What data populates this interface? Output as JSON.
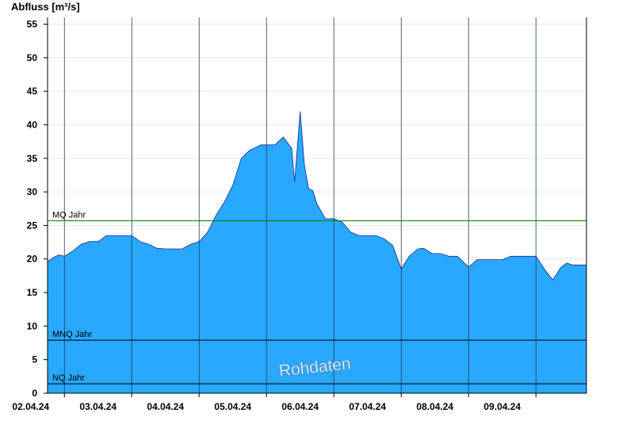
{
  "chart_data": {
    "type": "area",
    "ylabel": "Abfluss [m³/s]",
    "ylim": [
      0,
      56
    ],
    "yticks": [
      0,
      5,
      10,
      15,
      20,
      25,
      30,
      35,
      40,
      45,
      50,
      55
    ],
    "xlim": [
      "2024-04-01T18:00",
      "2024-04-09T18:00"
    ],
    "x_tick_labels": [
      "02.04.24",
      "03.04.24",
      "04.04.24",
      "05.04.24",
      "06.04.24",
      "07.04.24",
      "08.04.24",
      "09.04.24"
    ],
    "grid": true,
    "series": [
      {
        "fill_color": "#29a8ff",
        "line_color": "#1a2a8a",
        "x": [
          "2024-04-01T18:00",
          "2024-04-01T20:00",
          "2024-04-01T22:00",
          "2024-04-02T00:00",
          "2024-04-02T03:00",
          "2024-04-02T06:00",
          "2024-04-02T09:00",
          "2024-04-02T12:00",
          "2024-04-02T15:00",
          "2024-04-02T18:00",
          "2024-04-02T21:00",
          "2024-04-03T00:00",
          "2024-04-03T03:00",
          "2024-04-03T06:00",
          "2024-04-03T09:00",
          "2024-04-03T12:00",
          "2024-04-03T15:00",
          "2024-04-03T18:00",
          "2024-04-03T21:00",
          "2024-04-04T00:00",
          "2024-04-04T03:00",
          "2024-04-04T06:00",
          "2024-04-04T09:00",
          "2024-04-04T12:00",
          "2024-04-04T15:00",
          "2024-04-04T18:00",
          "2024-04-04T20:00",
          "2024-04-04T22:00",
          "2024-04-05T00:00",
          "2024-04-05T03:00",
          "2024-04-05T06:00",
          "2024-04-05T09:00",
          "2024-04-05T10:00",
          "2024-04-05T12:00",
          "2024-04-05T13:30",
          "2024-04-05T15:00",
          "2024-04-05T16:30",
          "2024-04-05T18:00",
          "2024-04-05T21:00",
          "2024-04-06T00:00",
          "2024-04-06T03:00",
          "2024-04-06T06:00",
          "2024-04-06T09:00",
          "2024-04-06T12:00",
          "2024-04-06T15:00",
          "2024-04-06T18:00",
          "2024-04-06T21:00",
          "2024-04-07T00:00",
          "2024-04-07T03:00",
          "2024-04-07T06:00",
          "2024-04-07T08:00",
          "2024-04-07T11:00",
          "2024-04-07T14:00",
          "2024-04-07T17:00",
          "2024-04-07T20:00",
          "2024-04-08T00:00",
          "2024-04-08T03:00",
          "2024-04-08T06:00",
          "2024-04-08T09:00",
          "2024-04-08T12:00",
          "2024-04-08T15:00",
          "2024-04-08T18:00",
          "2024-04-08T21:00",
          "2024-04-09T00:00",
          "2024-04-09T03:00",
          "2024-04-09T06:00",
          "2024-04-09T09:00",
          "2024-04-09T11:00",
          "2024-04-09T13:00",
          "2024-04-09T15:00",
          "2024-04-09T18:00"
        ],
        "y": [
          19.6,
          20.2,
          20.6,
          20.4,
          21.2,
          22.2,
          22.6,
          22.6,
          23.5,
          23.5,
          23.5,
          23.5,
          22.6,
          22.2,
          21.6,
          21.5,
          21.5,
          21.5,
          22.2,
          22.6,
          24.0,
          26.5,
          28.5,
          31.0,
          35.0,
          36.2,
          36.6,
          37.0,
          37.0,
          37.0,
          38.2,
          36.5,
          31.5,
          42.0,
          34.0,
          30.5,
          30.2,
          28.2,
          26.0,
          26.0,
          25.5,
          24.0,
          23.5,
          23.5,
          23.5,
          23.0,
          22.0,
          18.5,
          20.5,
          21.5,
          21.6,
          20.8,
          20.8,
          20.4,
          20.4,
          18.8,
          19.9,
          19.9,
          19.9,
          19.9,
          20.4,
          20.4,
          20.4,
          20.4,
          18.5,
          16.9,
          18.8,
          19.4,
          19.1,
          19.1,
          19.1
        ]
      }
    ],
    "reference_lines": [
      {
        "label": "MQ Jahr",
        "value": 25.7,
        "color": "#008000"
      },
      {
        "label": "MNQ Jahr",
        "value": 7.9,
        "color": "#000000"
      },
      {
        "label": "NQ Jahr",
        "value": 1.4,
        "color": "#000000"
      }
    ],
    "annotations": [
      "Rohdaten"
    ]
  }
}
